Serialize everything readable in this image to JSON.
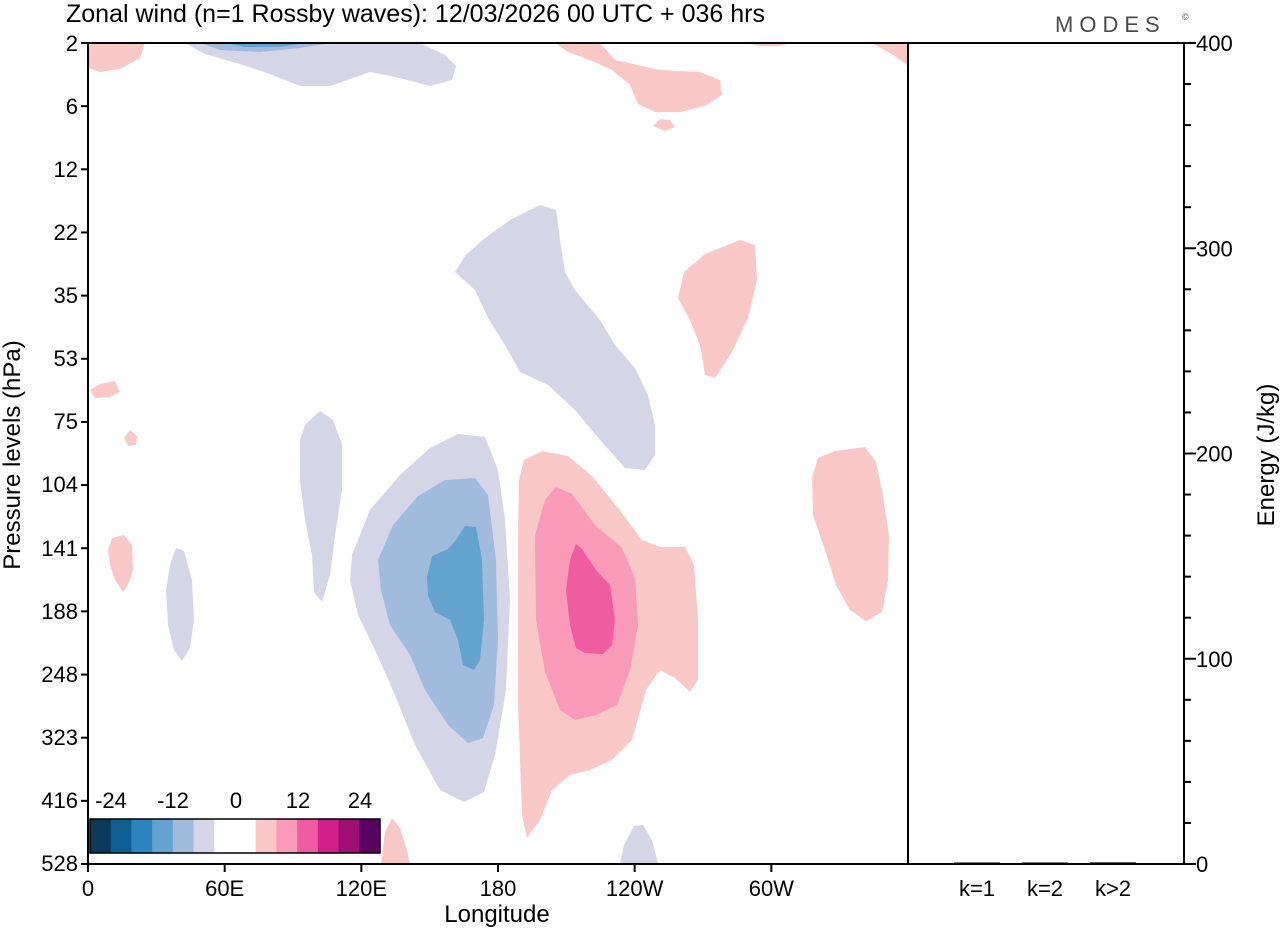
{
  "header": {
    "title": "Zonal wind (n=1 Rossby waves):  12/03/2026  00 UTC  + 036 hrs",
    "logo": "MODES",
    "logo_mark": "©"
  },
  "chart_data": [
    {
      "type": "heatmap",
      "title": "Zonal wind (n=1 Rossby waves):  12/03/2026  00 UTC  + 036 hrs",
      "xlabel": "Longitude",
      "ylabel": "Pressure levels (hPa)",
      "x_ticks": [
        "0",
        "60E",
        "120E",
        "180",
        "120W",
        "60W"
      ],
      "x_tick_values": [
        0,
        60,
        120,
        180,
        240,
        300
      ],
      "xlim": [
        0,
        360
      ],
      "y_ticks": [
        "2",
        "6",
        "12",
        "22",
        "35",
        "53",
        "75",
        "104",
        "141",
        "188",
        "248",
        "323",
        "416",
        "528"
      ],
      "colorbar": {
        "labels": [
          "-24",
          "-12",
          "0",
          "12",
          "24"
        ],
        "colors": [
          "#0c3a5a",
          "#0f5f93",
          "#2c85bd",
          "#64a3cf",
          "#a1bbdd",
          "#d4d6e8",
          "#ffffff",
          "#ffffff",
          "#f9c8c6",
          "#f99ab8",
          "#ef5da0",
          "#d31f8a",
          "#9e0f74",
          "#5a0063"
        ]
      },
      "contour_levels": {
        "neg_1": "#d4d6e8",
        "neg_2": "#a1bbdd",
        "neg_3": "#64a3cf",
        "pos_1": "#f9c8c6",
        "pos_2": "#f99ab8",
        "pos_3": "#ef5da0"
      }
    },
    {
      "type": "bar",
      "ylabel": "Energy (J/kg)",
      "categories": [
        "k=1",
        "k=2",
        "k>2"
      ],
      "values": [
        0.3,
        0.3,
        0.8
      ],
      "ylim": [
        0,
        400
      ],
      "y_ticks": [
        "0",
        "100",
        "200",
        "300",
        "400"
      ],
      "y_tick_values": [
        0,
        100,
        200,
        300,
        400
      ]
    }
  ]
}
